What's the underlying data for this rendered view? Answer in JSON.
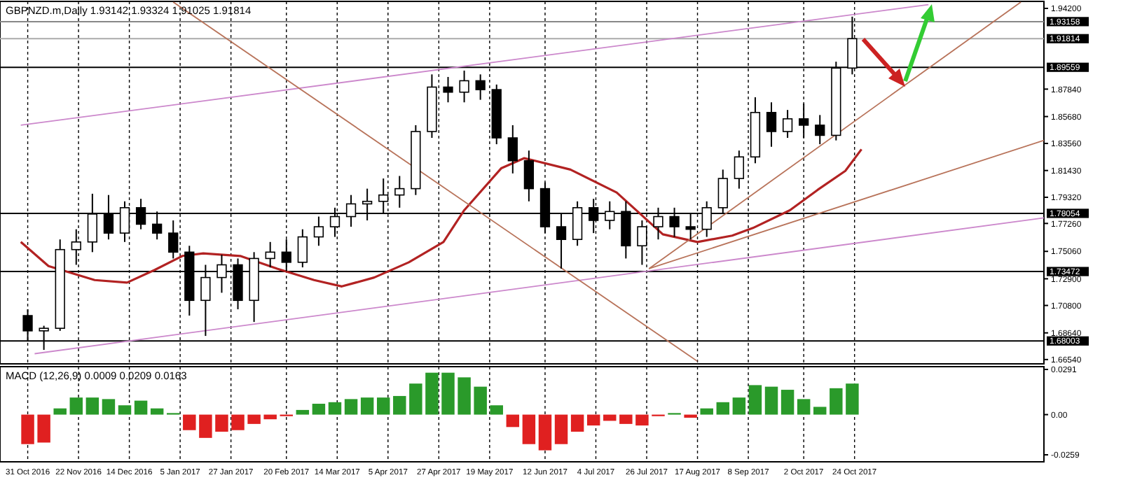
{
  "chart_data": [
    {
      "type": "candlestick",
      "title": "GBPNZD.m,Daily  1.93142 1.93324 1.91025 1.91814",
      "color": "#000000",
      "x": [
        "2016-10-31",
        "2016-11-07",
        "2016-11-14",
        "2016-11-21",
        "2016-11-28",
        "2016-12-05",
        "2016-12-12",
        "2016-12-19",
        "2016-12-26",
        "2017-01-02",
        "2017-01-09",
        "2017-01-16",
        "2017-01-23",
        "2017-01-30",
        "2017-02-06",
        "2017-02-13",
        "2017-02-20",
        "2017-02-27",
        "2017-03-06",
        "2017-03-13",
        "2017-03-20",
        "2017-03-27",
        "2017-04-03",
        "2017-04-10",
        "2017-04-17",
        "2017-04-24",
        "2017-05-01",
        "2017-05-08",
        "2017-05-15",
        "2017-05-22",
        "2017-05-29",
        "2017-06-05",
        "2017-06-12",
        "2017-06-19",
        "2017-06-26",
        "2017-07-03",
        "2017-07-10",
        "2017-07-17",
        "2017-07-24",
        "2017-07-31",
        "2017-08-07",
        "2017-08-14",
        "2017-08-21",
        "2017-08-28",
        "2017-09-04",
        "2017-09-11",
        "2017-09-18",
        "2017-09-25",
        "2017-10-02",
        "2017-10-09",
        "2017-10-16",
        "2017-10-23"
      ],
      "ohlc": [
        [
          1.7,
          1.705,
          1.68,
          1.688
        ],
        [
          1.688,
          1.692,
          1.673,
          1.69
        ],
        [
          1.69,
          1.76,
          1.688,
          1.752
        ],
        [
          1.752,
          1.768,
          1.74,
          1.758
        ],
        [
          1.758,
          1.796,
          1.75,
          1.78
        ],
        [
          1.78,
          1.795,
          1.76,
          1.765
        ],
        [
          1.765,
          1.79,
          1.758,
          1.785
        ],
        [
          1.785,
          1.792,
          1.768,
          1.772
        ],
        [
          1.772,
          1.782,
          1.76,
          1.765
        ],
        [
          1.765,
          1.775,
          1.745,
          1.75
        ],
        [
          1.75,
          1.755,
          1.7,
          1.712
        ],
        [
          1.712,
          1.74,
          1.684,
          1.73
        ],
        [
          1.73,
          1.748,
          1.718,
          1.74
        ],
        [
          1.74,
          1.745,
          1.705,
          1.712
        ],
        [
          1.712,
          1.75,
          1.695,
          1.745
        ],
        [
          1.745,
          1.758,
          1.738,
          1.75
        ],
        [
          1.75,
          1.76,
          1.735,
          1.742
        ],
        [
          1.742,
          1.768,
          1.738,
          1.762
        ],
        [
          1.762,
          1.778,
          1.755,
          1.77
        ],
        [
          1.77,
          1.785,
          1.762,
          1.778
        ],
        [
          1.778,
          1.795,
          1.77,
          1.788
        ],
        [
          1.788,
          1.8,
          1.775,
          1.79
        ],
        [
          1.79,
          1.808,
          1.78,
          1.795
        ],
        [
          1.795,
          1.81,
          1.785,
          1.8
        ],
        [
          1.8,
          1.85,
          1.795,
          1.845
        ],
        [
          1.845,
          1.89,
          1.84,
          1.88
        ],
        [
          1.88,
          1.888,
          1.868,
          1.876
        ],
        [
          1.876,
          1.893,
          1.868,
          1.885
        ],
        [
          1.885,
          1.89,
          1.87,
          1.878
        ],
        [
          1.878,
          1.882,
          1.835,
          1.84
        ],
        [
          1.84,
          1.85,
          1.812,
          1.822
        ],
        [
          1.822,
          1.83,
          1.79,
          1.8
        ],
        [
          1.8,
          1.805,
          1.765,
          1.77
        ],
        [
          1.77,
          1.78,
          1.737,
          1.76
        ],
        [
          1.76,
          1.79,
          1.755,
          1.785
        ],
        [
          1.785,
          1.792,
          1.765,
          1.775
        ],
        [
          1.775,
          1.79,
          1.768,
          1.782
        ],
        [
          1.782,
          1.79,
          1.745,
          1.755
        ],
        [
          1.755,
          1.775,
          1.74,
          1.77
        ],
        [
          1.77,
          1.785,
          1.76,
          1.778
        ],
        [
          1.778,
          1.785,
          1.762,
          1.77
        ],
        [
          1.77,
          1.78,
          1.76,
          1.768
        ],
        [
          1.768,
          1.79,
          1.762,
          1.785
        ],
        [
          1.785,
          1.815,
          1.78,
          1.808
        ],
        [
          1.808,
          1.83,
          1.8,
          1.825
        ],
        [
          1.825,
          1.872,
          1.82,
          1.86
        ],
        [
          1.86,
          1.868,
          1.833,
          1.845
        ],
        [
          1.845,
          1.862,
          1.84,
          1.855
        ],
        [
          1.855,
          1.867,
          1.84,
          1.85
        ],
        [
          1.85,
          1.858,
          1.835,
          1.842
        ],
        [
          1.842,
          1.9,
          1.838,
          1.895
        ],
        [
          1.895,
          1.9355,
          1.89,
          1.91814
        ]
      ],
      "series": [
        {
          "type": "line",
          "color": "#b22222",
          "x": [
            "2016-10-28",
            "2016-11-09",
            "2016-11-29",
            "2016-12-13",
            "2016-12-25",
            "2017-01-06",
            "2017-01-15",
            "2017-01-31",
            "2017-02-16",
            "2017-03-04",
            "2017-03-16",
            "2017-03-30",
            "2017-04-14",
            "2017-04-29",
            "2017-05-08",
            "2017-05-24",
            "2017-06-03",
            "2017-06-23",
            "2017-07-13",
            "2017-08-02",
            "2017-08-17",
            "2017-09-01",
            "2017-09-10",
            "2017-09-26",
            "2017-10-08",
            "2017-10-20",
            "2017-10-27"
          ],
          "values": [
            1.758,
            1.739,
            1.728,
            1.726,
            1.736,
            1.747,
            1.749,
            1.747,
            1.737,
            1.728,
            1.723,
            1.73,
            1.742,
            1.758,
            1.783,
            1.816,
            1.824,
            1.815,
            1.797,
            1.764,
            1.758,
            1.763,
            1.769,
            1.783,
            1.799,
            1.814,
            1.831
          ]
        },
        {
          "type": "line",
          "color": "#cc88cc",
          "x": [
            "2016-10-28",
            "2017-11-25"
          ],
          "values": [
            1.85,
            1.945
          ]
        },
        {
          "type": "line",
          "color": "#cc88cc",
          "x": [
            "2016-11-03",
            "2018-01-14"
          ],
          "values": [
            1.67,
            1.777
          ]
        },
        {
          "type": "line",
          "color": "#b8735a",
          "x": [
            "2017-01-02",
            "2017-08-17"
          ],
          "values": [
            1.947,
            1.664
          ]
        },
        {
          "type": "line",
          "color": "#b8735a",
          "x": [
            "2017-07-27",
            "2018-01-04"
          ],
          "values": [
            1.737,
            1.947
          ]
        },
        {
          "type": "line",
          "color": "#b8735a",
          "x": [
            "2017-07-27",
            "2018-01-14"
          ],
          "values": [
            1.737,
            1.838
          ]
        }
      ],
      "xlim": [
        "2016-10-19",
        "2018-01-14"
      ],
      "xticks": [
        {
          "value": "2016-10-31",
          "label": null
        },
        {
          "value": "2016-11-22",
          "label": null
        },
        {
          "value": "2016-12-14",
          "label": null
        },
        {
          "value": "2017-01-05",
          "label": null
        },
        {
          "value": "2017-01-27",
          "label": null
        },
        {
          "value": "2017-02-20",
          "label": null
        },
        {
          "value": "2017-03-14",
          "label": null
        },
        {
          "value": "2017-04-05",
          "label": null
        },
        {
          "value": "2017-04-27",
          "label": null
        },
        {
          "value": "2017-05-19",
          "label": null
        },
        {
          "value": "2017-06-12",
          "label": null
        },
        {
          "value": "2017-07-04",
          "label": null
        },
        {
          "value": "2017-07-26",
          "label": null
        },
        {
          "value": "2017-08-17",
          "label": null
        },
        {
          "value": "2017-09-08",
          "label": null
        },
        {
          "value": "2017-10-02",
          "label": null
        },
        {
          "value": "2017-10-24",
          "label": null
        }
      ],
      "ylim": [
        1.662,
        1.9475
      ],
      "yticks": [
        {
          "value": 1.942,
          "label": "1.94200"
        },
        {
          "value": 1.8784,
          "label": "1.87840"
        },
        {
          "value": 1.8568,
          "label": "1.85680"
        },
        {
          "value": 1.8356,
          "label": "1.83560"
        },
        {
          "value": 1.8143,
          "label": "1.81430"
        },
        {
          "value": 1.7932,
          "label": "1.79320"
        },
        {
          "value": 1.7726,
          "label": "1.77260"
        },
        {
          "value": 1.7506,
          "label": "1.75060"
        },
        {
          "value": 1.729,
          "label": "1.72900"
        },
        {
          "value": 1.708,
          "label": "1.70800"
        },
        {
          "value": 1.6864,
          "label": "1.68640"
        },
        {
          "value": 1.6654,
          "label": "1.66540"
        }
      ],
      "ref_lines": [
        {
          "axis": "y",
          "value": 1.93158,
          "label": "1.93158",
          "color": "#888888"
        },
        {
          "axis": "y",
          "value": 1.91814,
          "label": "1.91814",
          "color": "#aaaaaa"
        },
        {
          "axis": "y",
          "value": 1.89559,
          "label": "1.89559",
          "color": "#000000"
        },
        {
          "axis": "y",
          "value": 1.78054,
          "label": "1.78054",
          "color": "#000000"
        },
        {
          "axis": "y",
          "value": 1.73472,
          "label": "1.73472",
          "color": "#000000"
        },
        {
          "axis": "y",
          "value": 1.68003,
          "label": "1.68003",
          "color": "#000000"
        }
      ],
      "grid": "x",
      "tick_labels": "y"
    },
    {
      "type": "bar",
      "title": "MACD (12,26,9) 0.0009 0.0209 0.0163",
      "x": [
        "2016-10-31",
        "2016-11-07",
        "2016-11-14",
        "2016-11-21",
        "2016-11-28",
        "2016-12-05",
        "2016-12-12",
        "2016-12-19",
        "2016-12-26",
        "2017-01-02",
        "2017-01-09",
        "2017-01-16",
        "2017-01-23",
        "2017-01-30",
        "2017-02-06",
        "2017-02-13",
        "2017-02-20",
        "2017-02-27",
        "2017-03-06",
        "2017-03-13",
        "2017-03-20",
        "2017-03-27",
        "2017-04-03",
        "2017-04-10",
        "2017-04-17",
        "2017-04-24",
        "2017-05-01",
        "2017-05-08",
        "2017-05-15",
        "2017-05-22",
        "2017-05-29",
        "2017-06-05",
        "2017-06-12",
        "2017-06-19",
        "2017-06-26",
        "2017-07-03",
        "2017-07-10",
        "2017-07-17",
        "2017-07-24",
        "2017-07-31",
        "2017-08-07",
        "2017-08-14",
        "2017-08-21",
        "2017-08-28",
        "2017-09-04",
        "2017-09-11",
        "2017-09-18",
        "2017-09-25",
        "2017-10-02",
        "2017-10-09",
        "2017-10-16",
        "2017-10-23"
      ],
      "values": [
        -0.019,
        -0.018,
        0.004,
        0.011,
        0.011,
        0.01,
        0.006,
        0.009,
        0.004,
        0.001,
        -0.01,
        -0.015,
        -0.011,
        -0.01,
        -0.006,
        -0.003,
        -0.001,
        0.003,
        0.007,
        0.008,
        0.01,
        0.011,
        0.011,
        0.012,
        0.02,
        0.027,
        0.027,
        0.024,
        0.018,
        0.006,
        -0.008,
        -0.019,
        -0.023,
        -0.019,
        -0.011,
        -0.007,
        -0.004,
        -0.006,
        -0.007,
        -0.001,
        0.001,
        -0.002,
        0.004,
        0.008,
        0.011,
        0.019,
        0.018,
        0.016,
        0.01,
        0.005,
        0.017,
        0.02
      ],
      "colors": [
        "#e02020",
        "#e02020",
        "#2a9a2a",
        "#2a9a2a",
        "#2a9a2a",
        "#2a9a2a",
        "#2a9a2a",
        "#2a9a2a",
        "#2a9a2a",
        "#2a9a2a",
        "#e02020",
        "#e02020",
        "#e02020",
        "#e02020",
        "#e02020",
        "#e02020",
        "#e02020",
        "#2a9a2a",
        "#2a9a2a",
        "#2a9a2a",
        "#2a9a2a",
        "#2a9a2a",
        "#2a9a2a",
        "#2a9a2a",
        "#2a9a2a",
        "#2a9a2a",
        "#2a9a2a",
        "#2a9a2a",
        "#2a9a2a",
        "#2a9a2a",
        "#e02020",
        "#e02020",
        "#e02020",
        "#e02020",
        "#e02020",
        "#e02020",
        "#e02020",
        "#e02020",
        "#e02020",
        "#e02020",
        "#2a9a2a",
        "#e02020",
        "#2a9a2a",
        "#2a9a2a",
        "#2a9a2a",
        "#2a9a2a",
        "#2a9a2a",
        "#2a9a2a",
        "#2a9a2a",
        "#2a9a2a",
        "#2a9a2a",
        "#2a9a2a"
      ],
      "xlim": [
        "2016-10-19",
        "2018-01-14"
      ],
      "xticks": [
        {
          "value": "2016-10-31",
          "label": "31 Oct 2016"
        },
        {
          "value": "2016-11-22",
          "label": "22 Nov 2016"
        },
        {
          "value": "2016-12-14",
          "label": "14 Dec 2016"
        },
        {
          "value": "2017-01-05",
          "label": "5 Jan 2017"
        },
        {
          "value": "2017-01-27",
          "label": "27 Jan 2017"
        },
        {
          "value": "2017-02-20",
          "label": "20 Feb 2017"
        },
        {
          "value": "2017-03-14",
          "label": "14 Mar 2017"
        },
        {
          "value": "2017-04-05",
          "label": "5 Apr 2017"
        },
        {
          "value": "2017-04-27",
          "label": "27 Apr 2017"
        },
        {
          "value": "2017-05-19",
          "label": "19 May 2017"
        },
        {
          "value": "2017-06-12",
          "label": "12 Jun 2017"
        },
        {
          "value": "2017-07-04",
          "label": "4 Jul 2017"
        },
        {
          "value": "2017-07-26",
          "label": "26 Jul 2017"
        },
        {
          "value": "2017-08-17",
          "label": "17 Aug 2017"
        },
        {
          "value": "2017-09-08",
          "label": "8 Sep 2017"
        },
        {
          "value": "2017-10-02",
          "label": "2 Oct 2017"
        },
        {
          "value": "2017-10-24",
          "label": "24 Oct 2017"
        }
      ],
      "ylim": [
        -0.0304,
        0.0309
      ],
      "yticks": [
        0.0291,
        {
          "value": 0,
          "label": "0.00"
        },
        -0.0259
      ],
      "grid": "x"
    }
  ]
}
